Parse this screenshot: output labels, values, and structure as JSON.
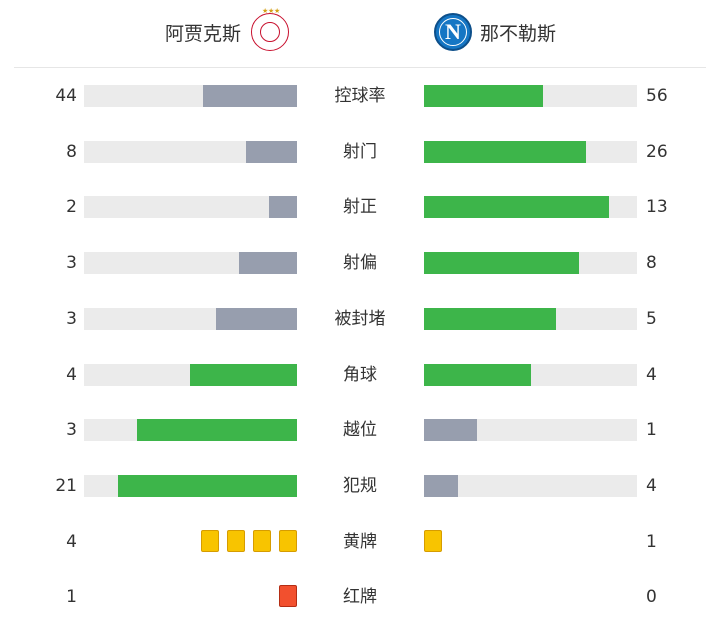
{
  "teams": {
    "home": {
      "name": "阿贾克斯",
      "logo_icon": "ajax-crest-icon"
    },
    "away": {
      "name": "那不勒斯",
      "logo_icon": "napoli-crest-icon",
      "logo_letter": "N"
    }
  },
  "colors": {
    "home_bar": "#979eae",
    "away_bar": "#3db54a",
    "track": "#ebebeb",
    "yellow_card": "#f8c400",
    "red_card": "#f2502e"
  },
  "stats": [
    {
      "label": "控球率",
      "home": "44",
      "away": "56",
      "home_ratio": 0.44,
      "away_ratio": 0.56,
      "leader": "away"
    },
    {
      "label": "射门",
      "home": "8",
      "away": "26",
      "home_ratio": 0.24,
      "away_ratio": 0.76,
      "leader": "away"
    },
    {
      "label": "射正",
      "home": "2",
      "away": "13",
      "home_ratio": 0.13,
      "away_ratio": 0.87,
      "leader": "away"
    },
    {
      "label": "射偏",
      "home": "3",
      "away": "8",
      "home_ratio": 0.27,
      "away_ratio": 0.73,
      "leader": "away"
    },
    {
      "label": "被封堵",
      "home": "3",
      "away": "5",
      "home_ratio": 0.38,
      "away_ratio": 0.62,
      "leader": "away"
    },
    {
      "label": "角球",
      "home": "4",
      "away": "4",
      "home_ratio": 0.5,
      "away_ratio": 0.5,
      "leader": "both"
    },
    {
      "label": "越位",
      "home": "3",
      "away": "1",
      "home_ratio": 0.75,
      "away_ratio": 0.25,
      "leader": "home"
    },
    {
      "label": "犯规",
      "home": "21",
      "away": "4",
      "home_ratio": 0.84,
      "away_ratio": 0.16,
      "leader": "home"
    }
  ],
  "cards": [
    {
      "label": "黄牌",
      "home": "4",
      "away": "1",
      "home_count": 4,
      "away_count": 1,
      "type": "yellow"
    },
    {
      "label": "红牌",
      "home": "1",
      "away": "0",
      "home_count": 1,
      "away_count": 0,
      "type": "red"
    }
  ]
}
